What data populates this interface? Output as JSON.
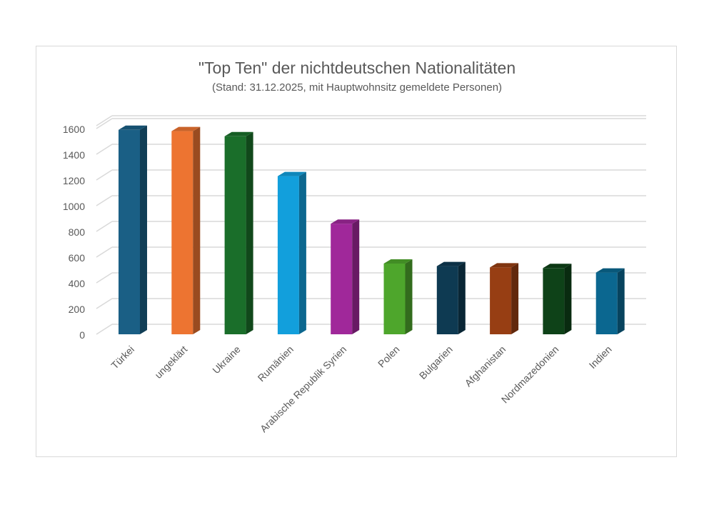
{
  "chart_data": {
    "type": "bar",
    "title": "\"Top Ten\" der nichtdeutschen Nationalitäten",
    "subtitle": "(Stand: 31.12.2025, mit Hauptwohnsitz gemeldete Personen)",
    "xlabel": "",
    "ylabel": "",
    "ylim": [
      0,
      1600
    ],
    "yticks": [
      "0",
      "200",
      "400",
      "600",
      "800",
      "1000",
      "1200",
      "1400",
      "1600"
    ],
    "grid": true,
    "legend": "none",
    "categories": [
      "Türkei",
      "ungeklärt",
      "Ukraine",
      "Rumänien",
      "Arabische Republik Syrien",
      "Polen",
      "Bulgarien",
      "Afghanistan",
      "Nordmazedonien",
      "Indien"
    ],
    "values": [
      1590,
      1580,
      1540,
      1230,
      860,
      550,
      530,
      520,
      515,
      480
    ],
    "colors": [
      "#1a5f85",
      "#ed7431",
      "#1a6e2a",
      "#129fdc",
      "#a0289a",
      "#4ea62c",
      "#0e3a52",
      "#973e13",
      "#0e4218",
      "#0b6790"
    ]
  }
}
